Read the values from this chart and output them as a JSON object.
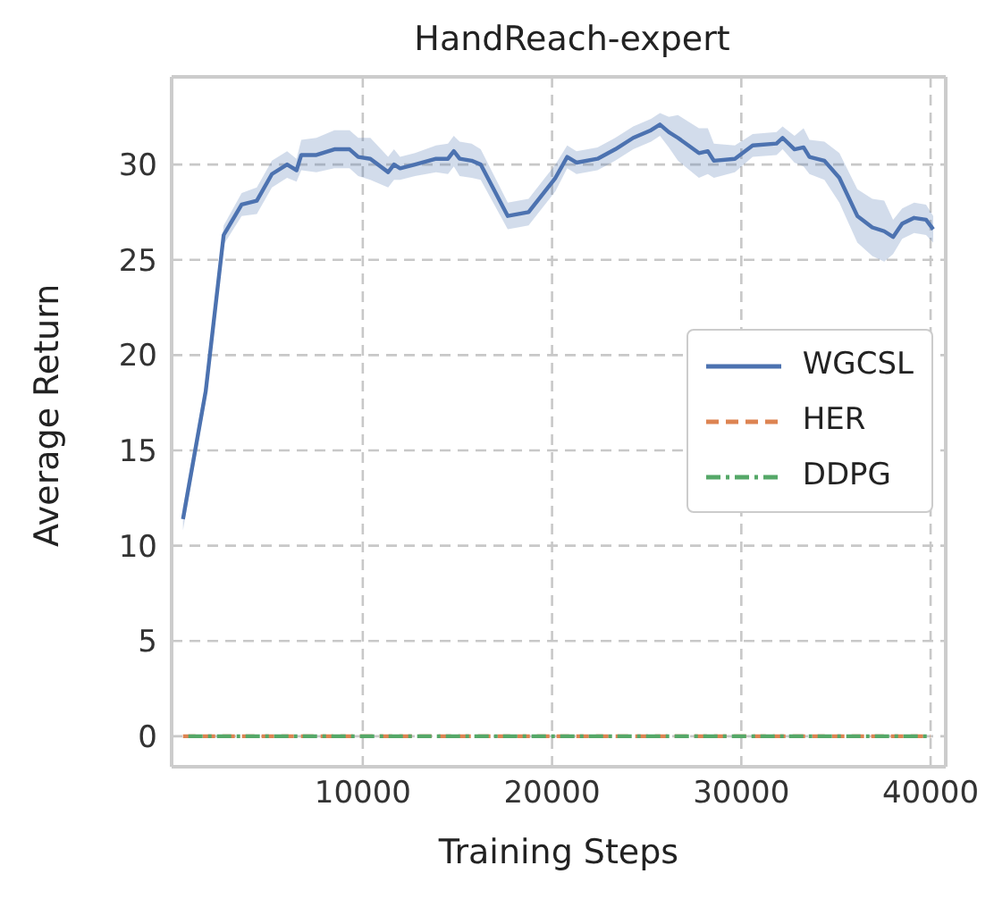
{
  "chart_data": {
    "type": "line",
    "title": "HandReach-expert",
    "xlabel": "Training Steps",
    "ylabel": "Average Return",
    "xlim": [
      -100,
      40800
    ],
    "xticks": [
      10000,
      20000,
      30000,
      40000
    ],
    "ylim": [
      -1.6,
      34.6
    ],
    "yticks": [
      0,
      5,
      10,
      15,
      20,
      25,
      30
    ],
    "grid": true,
    "legend": "center right",
    "series": [
      {
        "name": "WGCSL",
        "color": "#4c72b0",
        "line_style": "solid",
        "x": [
          500,
          1700,
          2650,
          3600,
          4400,
          5200,
          6000,
          6500,
          6750,
          7550,
          8500,
          9300,
          9760,
          10400,
          11340,
          11650,
          11970,
          12760,
          13870,
          14500,
          14810,
          15120,
          15750,
          16230,
          17660,
          18760,
          20180,
          20800,
          21290,
          22400,
          23340,
          24290,
          25230,
          25700,
          26170,
          26650,
          27760,
          28230,
          28550,
          29660,
          30600,
          31860,
          32180,
          32810,
          33290,
          33600,
          34390,
          35180,
          36130,
          36920,
          37550,
          38020,
          38500,
          39130,
          39760,
          40140
        ],
        "values": [
          11.4,
          18.1,
          26.3,
          27.9,
          28.1,
          29.5,
          30.0,
          29.7,
          30.5,
          30.5,
          30.8,
          30.8,
          30.4,
          30.3,
          29.6,
          30.0,
          29.8,
          30.0,
          30.3,
          30.3,
          30.7,
          30.3,
          30.2,
          30.0,
          27.3,
          27.5,
          29.3,
          30.4,
          30.1,
          30.3,
          30.8,
          31.4,
          31.8,
          32.1,
          31.7,
          31.4,
          30.6,
          30.7,
          30.2,
          30.3,
          31.0,
          31.1,
          31.4,
          30.8,
          30.9,
          30.4,
          30.2,
          29.3,
          27.3,
          26.7,
          26.5,
          26.2,
          26.9,
          27.2,
          27.1,
          26.6
        ],
        "lower": [
          10.8,
          17.6,
          25.8,
          27.3,
          27.4,
          28.8,
          29.3,
          29.1,
          29.7,
          29.6,
          29.8,
          29.8,
          29.4,
          29.2,
          28.8,
          29.2,
          29.2,
          29.4,
          29.6,
          29.5,
          29.9,
          29.4,
          29.3,
          29.2,
          26.6,
          26.8,
          28.6,
          29.8,
          29.5,
          29.7,
          30.2,
          30.8,
          31.2,
          31.5,
          30.9,
          30.2,
          29.3,
          29.5,
          29.3,
          29.6,
          30.4,
          30.5,
          30.8,
          30.1,
          29.9,
          29.5,
          29.2,
          28.0,
          25.9,
          25.2,
          24.9,
          25.3,
          26.1,
          26.4,
          26.3,
          25.9
        ],
        "upper": [
          12.0,
          18.6,
          26.8,
          28.5,
          28.8,
          30.2,
          30.7,
          30.3,
          31.3,
          31.4,
          31.8,
          31.8,
          31.4,
          31.4,
          30.4,
          30.8,
          30.4,
          30.6,
          31.0,
          31.1,
          31.5,
          31.2,
          31.1,
          30.8,
          28.0,
          28.2,
          30.0,
          31.0,
          30.7,
          30.9,
          31.4,
          32.0,
          32.4,
          32.7,
          32.5,
          32.6,
          31.9,
          31.9,
          31.1,
          31.0,
          31.6,
          31.7,
          32.0,
          31.5,
          31.9,
          31.3,
          31.2,
          30.6,
          28.7,
          28.2,
          28.1,
          27.1,
          27.7,
          28.0,
          27.9,
          27.3
        ]
      },
      {
        "name": "HER",
        "color": "#dd8452",
        "line_style": "dashed",
        "x": [
          500,
          40000
        ],
        "values": [
          0,
          0
        ]
      },
      {
        "name": "DDPG",
        "color": "#55a868",
        "line_style": "dashdot",
        "x": [
          500,
          40000
        ],
        "values": [
          0,
          0
        ]
      }
    ]
  }
}
